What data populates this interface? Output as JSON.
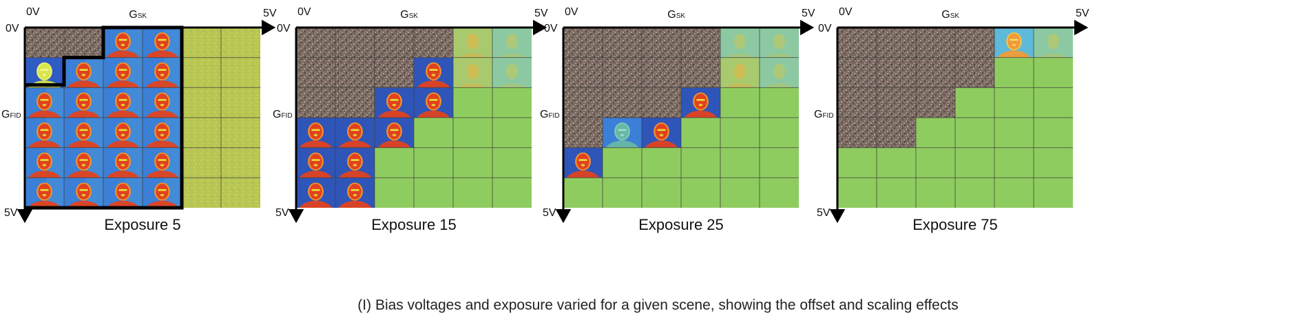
{
  "panels": [
    {
      "title": "Exposure 5",
      "axis_origin": "0V",
      "axis_x_end": "5V",
      "axis_y_end": "5V",
      "axis_x_label": "GSK",
      "axis_y_label": "GFID",
      "grid_rows": 6,
      "grid_cols": 6,
      "cells": [
        [
          "noise",
          "noise",
          "face_blue",
          "face_blue",
          "yellow",
          "yellow"
        ],
        [
          "face_bright",
          "face_blue",
          "face_blue",
          "face_blue",
          "yellow",
          "yellow"
        ],
        [
          "face_blue",
          "face_blue",
          "face_blue",
          "face_blue",
          "yellow",
          "yellow"
        ],
        [
          "face_blue",
          "face_blue",
          "face_blue",
          "face_blue",
          "yellow",
          "yellow"
        ],
        [
          "face_blue",
          "face_blue",
          "face_blue",
          "face_blue",
          "yellow",
          "yellow"
        ],
        [
          "face_blue",
          "face_blue",
          "face_blue",
          "face_blue",
          "yellow",
          "yellow"
        ]
      ],
      "has_outline": true
    },
    {
      "title": "Exposure 15",
      "axis_origin": "0V",
      "axis_x_end": "5V",
      "axis_y_end": "5V",
      "axis_x_label": "GSK",
      "axis_y_label": "GFID",
      "grid_rows": 6,
      "grid_cols": 6,
      "cells": [
        [
          "noise",
          "noise",
          "noise",
          "noise",
          "faded",
          "faded_cyan"
        ],
        [
          "noise",
          "noise",
          "noise",
          "face_dark",
          "faded",
          "faded_cyan"
        ],
        [
          "noise",
          "noise",
          "face_dark",
          "face_dark",
          "green",
          "green"
        ],
        [
          "face_dark",
          "face_dark",
          "face_dark",
          "green",
          "green",
          "green"
        ],
        [
          "face_dark",
          "face_dark",
          "green",
          "green",
          "green",
          "green"
        ],
        [
          "face_dark",
          "face_dark",
          "green",
          "green",
          "green",
          "green"
        ]
      ],
      "has_outline": false
    },
    {
      "title": "Exposure 25",
      "axis_origin": "0V",
      "axis_x_end": "5V",
      "axis_y_end": "5V",
      "axis_x_label": "GSK",
      "axis_y_label": "GFID",
      "grid_rows": 6,
      "grid_cols": 6,
      "cells": [
        [
          "noise",
          "noise",
          "noise",
          "noise",
          "faded_cyan",
          "faded_cyan"
        ],
        [
          "noise",
          "noise",
          "noise",
          "noise",
          "faded",
          "faded_cyan"
        ],
        [
          "noise",
          "noise",
          "noise",
          "face_dark",
          "green",
          "green"
        ],
        [
          "noise",
          "face_teal",
          "face_dark",
          "green",
          "green",
          "green"
        ],
        [
          "face_dark",
          "green",
          "green",
          "green",
          "green",
          "green"
        ],
        [
          "green",
          "green",
          "green",
          "green",
          "green",
          "green"
        ]
      ],
      "has_outline": false
    },
    {
      "title": "Exposure 75",
      "axis_origin": "0V",
      "axis_x_end": "5V",
      "axis_y_end": "5V",
      "axis_x_label": "GSK",
      "axis_y_label": "GFID",
      "grid_rows": 6,
      "grid_cols": 6,
      "cells": [
        [
          "noise",
          "noise",
          "noise",
          "noise",
          "face_cyan",
          "faded_cyan"
        ],
        [
          "noise",
          "noise",
          "noise",
          "noise",
          "green",
          "green"
        ],
        [
          "noise",
          "noise",
          "noise",
          "green",
          "green",
          "green"
        ],
        [
          "noise",
          "noise",
          "green",
          "green",
          "green",
          "green"
        ],
        [
          "green",
          "green",
          "green",
          "green",
          "green",
          "green"
        ],
        [
          "green",
          "green",
          "green",
          "green",
          "green",
          "green"
        ]
      ],
      "has_outline": false
    }
  ],
  "caption": "(I) Bias voltages and exposure varied for a given scene, showing the offset and scaling effects",
  "colors": {
    "noise": "#7a6a62",
    "noise_light": "#a39389",
    "noise_dark": "#4e423d",
    "green": "#8fcc5f",
    "yellow": "#b8c653",
    "face_blue_bg": "#3b7fd6",
    "face_dark_bg": "#2f55b8",
    "face_bright_bg": "#2e5bc4",
    "faded_bg": "#a9c96e",
    "faded_cyan_bg": "#8cc9a2",
    "face_red": "#e0421f",
    "face_orange": "#f3922e",
    "face_yellow": "#e8e33b",
    "face_teal": "#67b8a6",
    "grid_line": "#3c3c3c",
    "axis": "#000000"
  }
}
